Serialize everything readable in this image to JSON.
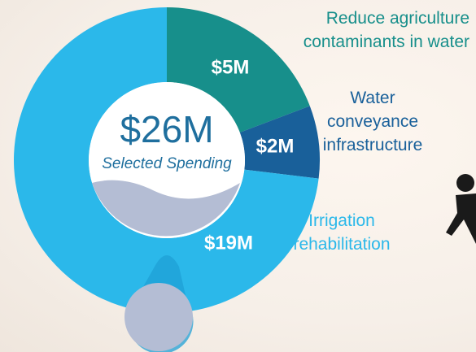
{
  "chart_data": {
    "type": "pie",
    "donut": true,
    "center_label": "$26M",
    "center_sublabel": "Selected Spending",
    "categories": [
      "Reduce agriculture\ncontaminants in water",
      "Water\nconveyance\ninfrastructure",
      "Irrigation\nrehabilitation"
    ],
    "values": [
      5,
      2,
      19
    ],
    "value_labels": [
      "$5M",
      "$2M",
      "$19M"
    ],
    "colors": [
      "#178f8b",
      "#19609a",
      "#2bb8ea"
    ]
  }
}
